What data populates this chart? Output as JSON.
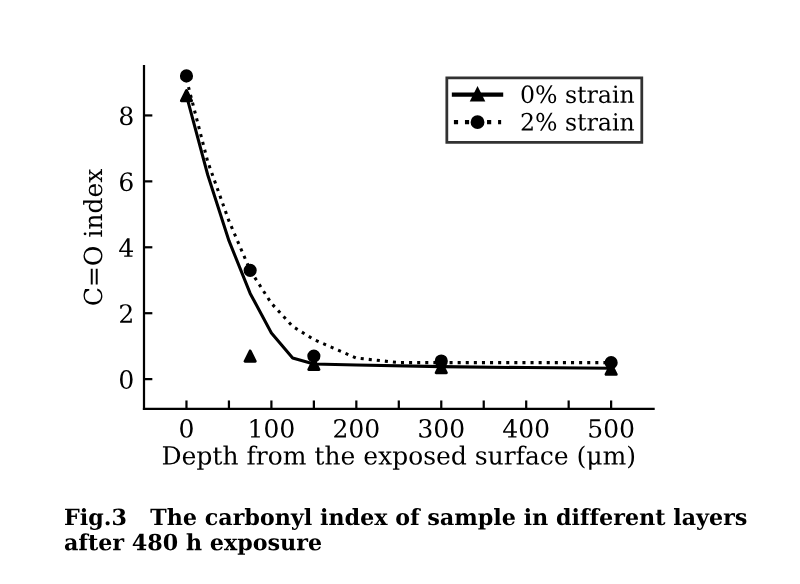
{
  "chart_data": {
    "type": "scatter",
    "xlabel": "Depth from the exposed surface (μm)",
    "ylabel": "C=O index",
    "xlim": [
      -50,
      550
    ],
    "ylim": [
      -0.9,
      9.5
    ],
    "xticks": [
      0,
      {
        "value": 50,
        "label": null
      },
      100,
      {
        "value": 150,
        "label": null
      },
      200,
      {
        "value": 250,
        "label": null
      },
      300,
      {
        "value": 350,
        "label": null
      },
      400,
      {
        "value": 450,
        "label": null
      },
      500
    ],
    "yticks": [
      0,
      2,
      4,
      6,
      8
    ],
    "grid": false,
    "legend": "top right",
    "series": [
      {
        "name": "0% strain",
        "marker": "triangle",
        "line_style": "solid",
        "color": "#000000",
        "x": [
          0,
          75,
          150,
          300,
          500
        ],
        "values": [
          8.6,
          0.7,
          0.45,
          0.35,
          0.3
        ]
      },
      {
        "name": "2% strain",
        "marker": "circle",
        "line_style": "dotted",
        "color": "#000000",
        "x": [
          0,
          75,
          150,
          300,
          500
        ],
        "values": [
          9.2,
          3.3,
          0.7,
          0.55,
          0.5
        ]
      },
      {
        "type": "line",
        "line_style": "solid",
        "color": "#000000",
        "x": [
          0,
          25,
          50,
          75,
          100,
          125,
          150,
          200,
          300,
          400,
          500
        ],
        "values": [
          8.6,
          6.2,
          4.2,
          2.6,
          1.4,
          0.64,
          0.46,
          0.43,
          0.38,
          0.35,
          0.33
        ]
      },
      {
        "type": "line",
        "line_style": "dotted",
        "color": "#000000",
        "x": [
          0,
          25,
          50,
          75,
          100,
          125,
          150,
          200,
          250,
          300,
          400,
          500
        ],
        "values": [
          9.1,
          6.6,
          4.8,
          3.3,
          2.3,
          1.6,
          1.2,
          0.64,
          0.5,
          0.5,
          0.5,
          0.5
        ]
      }
    ],
    "annotations": [
      "Fig.3   The carbonyl index of sample in different layers after 480 h exposure"
    ]
  }
}
